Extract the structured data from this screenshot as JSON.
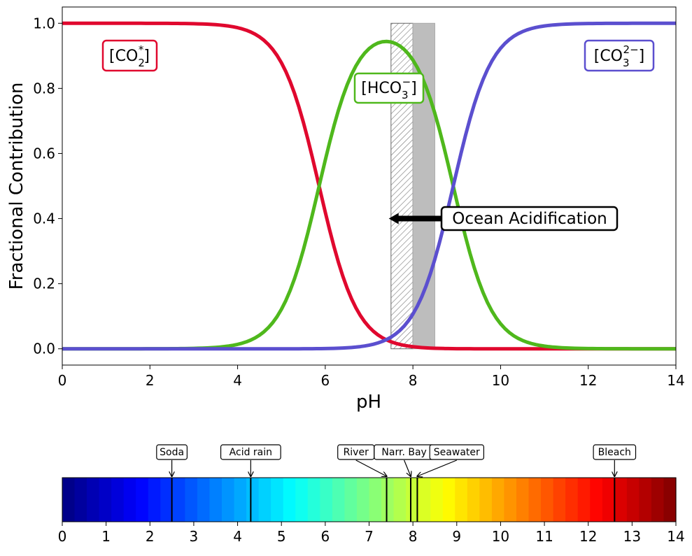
{
  "chart_data": [
    {
      "type": "line",
      "xlabel": "pH",
      "ylabel": "Fractional Contribution",
      "xlim": [
        0,
        14
      ],
      "ylim": [
        -0.05,
        1.05
      ],
      "xticks": [
        0,
        2,
        4,
        6,
        8,
        10,
        12,
        14
      ],
      "yticks": [
        0.0,
        0.2,
        0.4,
        0.6,
        0.8,
        1.0
      ],
      "xtick_labels": [
        "0",
        "2",
        "4",
        "6",
        "8",
        "10",
        "12",
        "14"
      ],
      "ytick_labels": [
        "0.0",
        "0.2",
        "0.4",
        "0.6",
        "0.8",
        "1.0"
      ],
      "pK1": 5.86,
      "pK2": 8.92,
      "x_sample_step": 0.1,
      "series": [
        {
          "name": "[CO2*]",
          "species": "co2",
          "color": "#e0082e",
          "label_x": 1.8,
          "label_y": 0.9
        },
        {
          "name": "[HCO3-]",
          "species": "hco3",
          "color": "#4fb81c",
          "label_x": 7.6,
          "label_y": 0.8
        },
        {
          "name": "[CO3 2-]",
          "species": "co3",
          "color": "#5b4fcf",
          "label_x": 12.8,
          "label_y": 0.9
        }
      ],
      "shaded_regions": [
        {
          "x0": 7.5,
          "x1": 8.0,
          "pattern": "hatch",
          "y0": 0,
          "y1": 1.0
        },
        {
          "x0": 8.0,
          "x1": 8.5,
          "pattern": "solid-gray",
          "y0": 0,
          "y1": 1.0
        }
      ],
      "annotation": {
        "text": "Ocean Acidification",
        "arrow_from_x": 8.65,
        "arrow_to_x": 7.45,
        "y": 0.4,
        "box_x": 10.8
      }
    },
    {
      "type": "colorbar",
      "xlim": [
        0,
        14
      ],
      "xticks": [
        0,
        1,
        2,
        3,
        4,
        5,
        6,
        7,
        8,
        9,
        10,
        11,
        12,
        13,
        14
      ],
      "xtick_labels": [
        "0",
        "1",
        "2",
        "3",
        "4",
        "5",
        "6",
        "7",
        "8",
        "9",
        "10",
        "11",
        "12",
        "13",
        "14"
      ],
      "colormap": "jet",
      "markers": [
        {
          "label": "Soda",
          "ph": 2.5,
          "label_ph": 2.5
        },
        {
          "label": "Acid rain",
          "ph": 4.3,
          "label_ph": 4.3
        },
        {
          "label": "River",
          "ph": 7.4,
          "label_ph": 6.7
        },
        {
          "label": "Narr. Bay",
          "ph": 7.95,
          "label_ph": 7.8
        },
        {
          "label": "Seawater",
          "ph": 8.1,
          "label_ph": 9.0
        },
        {
          "label": "Bleach",
          "ph": 12.6,
          "label_ph": 12.6
        }
      ]
    }
  ]
}
